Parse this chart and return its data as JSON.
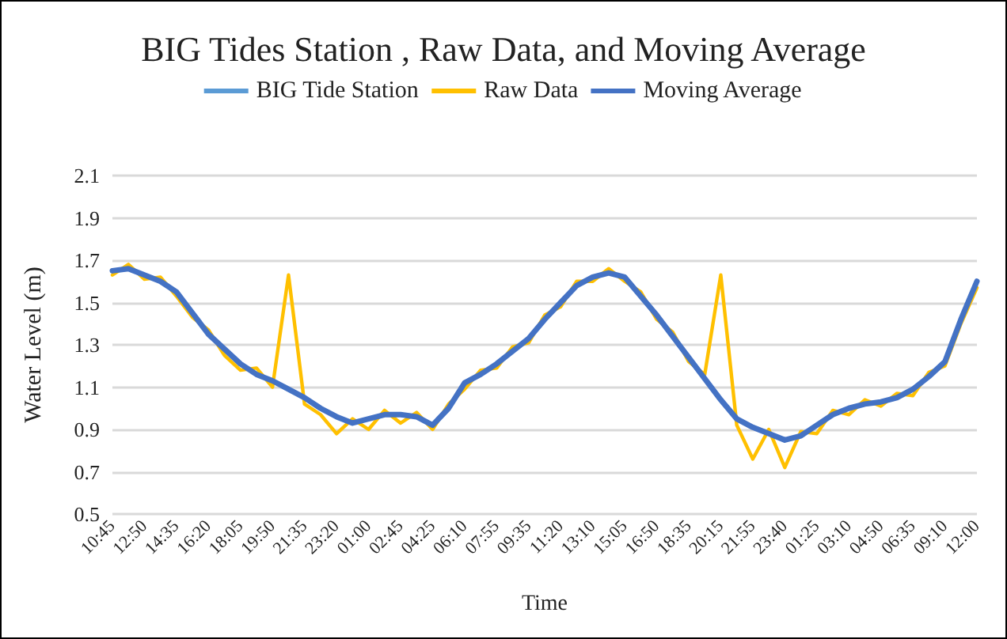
{
  "chart_data": {
    "type": "line",
    "title": "BIG Tides Station , Raw Data, and Moving Average",
    "xlabel": "Time",
    "ylabel": "Water Level (m)",
    "categories": [
      "10:45",
      null,
      "12:50",
      null,
      "14:35",
      null,
      "16:20",
      null,
      "18:05",
      null,
      "19:50",
      null,
      "21:35",
      null,
      "23:20",
      null,
      "01:00",
      null,
      "02:45",
      null,
      "04:25",
      null,
      "06:10",
      null,
      "07:55",
      null,
      "09:35",
      null,
      "11:20",
      null,
      "13:10",
      null,
      "15:05",
      null,
      "16:50",
      null,
      "18:35",
      null,
      "20:15",
      null,
      "21:55",
      null,
      "23:40",
      null,
      "01:25",
      null,
      "03:10",
      null,
      "04:50",
      null,
      "06:35",
      null,
      "09:10",
      null,
      "12:00"
    ],
    "series": [
      {
        "name": "BIG Tide Station",
        "color": "#5b9bd5",
        "values": [
          null,
          null,
          null,
          null,
          null,
          null,
          null,
          null,
          null,
          null,
          null,
          null,
          null,
          null,
          null,
          null,
          null,
          null,
          null,
          null,
          null,
          null,
          null,
          null,
          null,
          null,
          null,
          null,
          null,
          null,
          null,
          null,
          null,
          null,
          null,
          null,
          null,
          null,
          null,
          null,
          null,
          null,
          null,
          null,
          null,
          null,
          null,
          null,
          null,
          null,
          null,
          null,
          null,
          null,
          null
        ]
      },
      {
        "name": "Raw Data",
        "color": "#ffc000",
        "values": [
          1.63,
          1.68,
          1.61,
          1.62,
          1.53,
          1.43,
          1.37,
          1.25,
          1.18,
          1.19,
          1.1,
          1.63,
          1.02,
          0.97,
          0.88,
          0.95,
          0.9,
          0.99,
          0.93,
          0.98,
          0.9,
          1.02,
          1.09,
          1.18,
          1.19,
          1.29,
          1.31,
          1.44,
          1.48,
          1.6,
          1.6,
          1.66,
          1.6,
          1.55,
          1.42,
          1.36,
          1.22,
          1.16,
          1.63,
          0.92,
          0.76,
          0.9,
          0.72,
          0.89,
          0.88,
          0.99,
          0.97,
          1.04,
          1.01,
          1.07,
          1.06,
          1.17,
          1.2,
          1.4,
          1.57
        ]
      },
      {
        "name": "Moving Average",
        "color": "#4472c4",
        "values": [
          1.65,
          1.66,
          1.63,
          1.6,
          1.55,
          1.45,
          1.35,
          1.28,
          1.21,
          1.16,
          1.13,
          1.09,
          1.05,
          1.0,
          0.96,
          0.93,
          0.95,
          0.97,
          0.97,
          0.96,
          0.92,
          1.0,
          1.12,
          1.16,
          1.21,
          1.27,
          1.33,
          1.42,
          1.5,
          1.58,
          1.62,
          1.64,
          1.62,
          1.53,
          1.44,
          1.34,
          1.24,
          1.14,
          1.04,
          0.95,
          0.91,
          0.88,
          0.85,
          0.87,
          0.92,
          0.97,
          1.0,
          1.02,
          1.03,
          1.05,
          1.09,
          1.15,
          1.22,
          1.42,
          1.6
        ]
      }
    ],
    "ylim": [
      0.5,
      2.1
    ],
    "yticks": [
      0.5,
      0.7,
      0.9,
      1.1,
      1.3,
      1.5,
      1.7,
      1.9,
      2.1
    ],
    "grid": "y",
    "legend": "top",
    "marker": "none",
    "line_style": "solid"
  }
}
